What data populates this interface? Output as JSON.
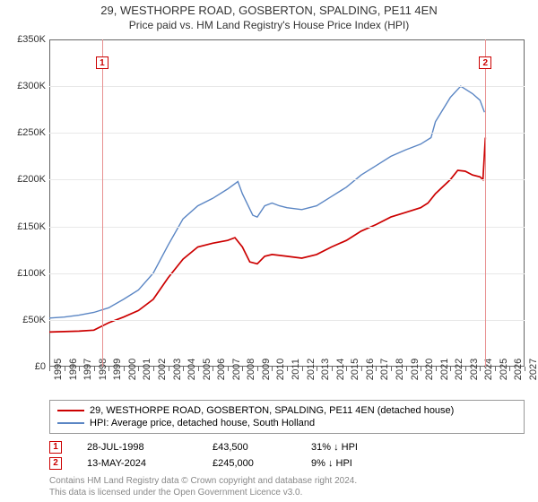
{
  "title1": "29, WESTHORPE ROAD, GOSBERTON, SPALDING, PE11 4EN",
  "title2": "Price paid vs. HM Land Registry's House Price Index (HPI)",
  "chart": {
    "type": "line",
    "xlim": [
      1995,
      2027
    ],
    "ylim": [
      0,
      350000
    ],
    "ytick_step": 50000,
    "yticks_labels": [
      "£0",
      "£50K",
      "£100K",
      "£150K",
      "£200K",
      "£250K",
      "£300K",
      "£350K"
    ],
    "xticks": [
      1995,
      1996,
      1997,
      1998,
      1999,
      2000,
      2001,
      2002,
      2003,
      2004,
      2005,
      2006,
      2007,
      2008,
      2009,
      2010,
      2011,
      2012,
      2013,
      2014,
      2015,
      2016,
      2017,
      2018,
      2019,
      2020,
      2021,
      2022,
      2023,
      2024,
      2025,
      2026,
      2027
    ],
    "background_color": "#ffffff",
    "grid_color": "#e8e8e8",
    "border_color": "#666666",
    "series": [
      {
        "name": "price_paid",
        "color": "#cc0000",
        "width": 1.7,
        "data": [
          [
            1995,
            37000
          ],
          [
            1996,
            37500
          ],
          [
            1997,
            38000
          ],
          [
            1998,
            39000
          ],
          [
            1998.56,
            43500
          ],
          [
            1999,
            47000
          ],
          [
            2000,
            53000
          ],
          [
            2001,
            60000
          ],
          [
            2002,
            72000
          ],
          [
            2003,
            95000
          ],
          [
            2004,
            115000
          ],
          [
            2005,
            128000
          ],
          [
            2006,
            132000
          ],
          [
            2007,
            135000
          ],
          [
            2007.5,
            138000
          ],
          [
            2008,
            128000
          ],
          [
            2008.5,
            112000
          ],
          [
            2009,
            110000
          ],
          [
            2009.5,
            118000
          ],
          [
            2010,
            120000
          ],
          [
            2011,
            118000
          ],
          [
            2012,
            116000
          ],
          [
            2013,
            120000
          ],
          [
            2014,
            128000
          ],
          [
            2015,
            135000
          ],
          [
            2016,
            145000
          ],
          [
            2017,
            152000
          ],
          [
            2018,
            160000
          ],
          [
            2019,
            165000
          ],
          [
            2020,
            170000
          ],
          [
            2020.5,
            175000
          ],
          [
            2021,
            185000
          ],
          [
            2022,
            200000
          ],
          [
            2022.5,
            210000
          ],
          [
            2023,
            209000
          ],
          [
            2023.5,
            205000
          ],
          [
            2024,
            203000
          ],
          [
            2024.2,
            200000
          ],
          [
            2024.36,
            245000
          ]
        ]
      },
      {
        "name": "hpi",
        "color": "#5b86c4",
        "width": 1.4,
        "data": [
          [
            1995,
            52000
          ],
          [
            1996,
            53000
          ],
          [
            1997,
            55000
          ],
          [
            1998,
            58000
          ],
          [
            1999,
            63000
          ],
          [
            2000,
            72000
          ],
          [
            2001,
            82000
          ],
          [
            2002,
            100000
          ],
          [
            2003,
            130000
          ],
          [
            2004,
            158000
          ],
          [
            2005,
            172000
          ],
          [
            2006,
            180000
          ],
          [
            2007,
            190000
          ],
          [
            2007.7,
            198000
          ],
          [
            2008,
            185000
          ],
          [
            2008.7,
            162000
          ],
          [
            2009,
            160000
          ],
          [
            2009.5,
            172000
          ],
          [
            2010,
            175000
          ],
          [
            2010.5,
            172000
          ],
          [
            2011,
            170000
          ],
          [
            2012,
            168000
          ],
          [
            2013,
            172000
          ],
          [
            2014,
            182000
          ],
          [
            2015,
            192000
          ],
          [
            2016,
            205000
          ],
          [
            2017,
            215000
          ],
          [
            2018,
            225000
          ],
          [
            2019,
            232000
          ],
          [
            2020,
            238000
          ],
          [
            2020.7,
            245000
          ],
          [
            2021,
            262000
          ],
          [
            2022,
            288000
          ],
          [
            2022.7,
            300000
          ],
          [
            2023,
            297000
          ],
          [
            2023.5,
            292000
          ],
          [
            2024,
            285000
          ],
          [
            2024.3,
            272000
          ]
        ]
      }
    ],
    "markers": [
      {
        "id": "1",
        "x": 1998.56,
        "y_top": 325000,
        "color": "#cc0000",
        "line_color": "#e89090"
      },
      {
        "id": "2",
        "x": 2024.36,
        "y_top": 325000,
        "color": "#cc0000",
        "line_color": "#e89090"
      }
    ]
  },
  "legend": {
    "items": [
      {
        "color": "#cc0000",
        "label": "29, WESTHORPE ROAD, GOSBERTON, SPALDING, PE11 4EN (detached house)"
      },
      {
        "color": "#5b86c4",
        "label": "HPI: Average price, detached house, South Holland"
      }
    ]
  },
  "events": [
    {
      "id": "1",
      "color": "#cc0000",
      "date": "28-JUL-1998",
      "price": "£43,500",
      "diff": "31% ↓ HPI"
    },
    {
      "id": "2",
      "color": "#cc0000",
      "date": "13-MAY-2024",
      "price": "£245,000",
      "diff": "9% ↓ HPI"
    }
  ],
  "copyright": {
    "line1": "Contains HM Land Registry data © Crown copyright and database right 2024.",
    "line2": "This data is licensed under the Open Government Licence v3.0."
  }
}
